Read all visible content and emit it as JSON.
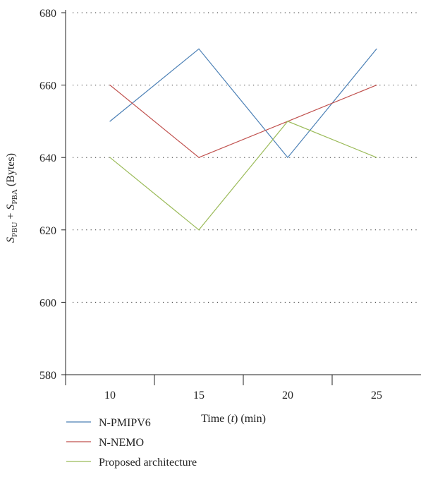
{
  "chart_data": {
    "type": "line",
    "title": "",
    "xlabel": "Time (t) (min)",
    "ylabel": {
      "parts": [
        {
          "text": "S",
          "style": "italic"
        },
        {
          "text": "PBU",
          "style": "sub"
        },
        {
          "text": " + ",
          "style": "normal"
        },
        {
          "text": "S",
          "style": "italic"
        },
        {
          "text": "PBA",
          "style": "sub"
        },
        {
          "text": " (Bytes)",
          "style": "normal"
        }
      ]
    },
    "categories": [
      10,
      15,
      20,
      25
    ],
    "xlim": [
      7.5,
      27.5
    ],
    "xticks": [
      7.5,
      12.5,
      17.5,
      22.5,
      27.5
    ],
    "ylim": [
      580,
      680
    ],
    "yticks": [
      580,
      600,
      620,
      640,
      660,
      680
    ],
    "grid": "horizontal-dotted",
    "legend_position": "bottom-left",
    "series": [
      {
        "name": "N-PMIPV6",
        "color": "#4a7fb5",
        "values": [
          650,
          670,
          640,
          670
        ]
      },
      {
        "name": "N-NEMO",
        "color": "#c0504d",
        "values": [
          660,
          640,
          650,
          660
        ]
      },
      {
        "name": "Proposed architecture",
        "color": "#9bbb59",
        "values": [
          640,
          620,
          650,
          640
        ]
      }
    ]
  }
}
